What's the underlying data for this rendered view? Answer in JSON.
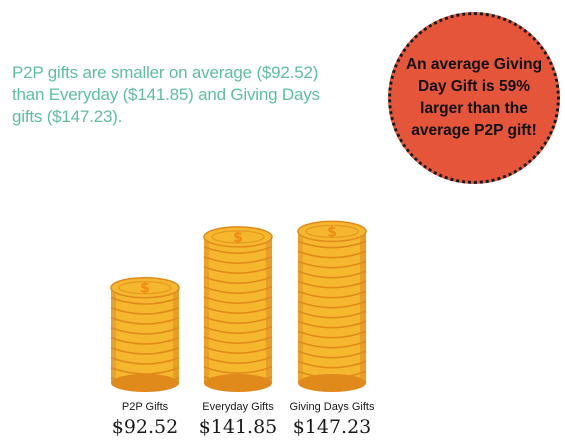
{
  "intro_text": "P2P gifts are smaller on average ($92.52) than Everyday ($141.85) and Giving Days gifts ($147.23).",
  "callout_text": "An average Giving Day Gift is 59% larger than the average P2P gift!",
  "colors": {
    "intro_text": "#5dbfa0",
    "callout_fill": "#e5553a",
    "coin_face": "#f5b72e",
    "coin_edge": "#e08a1c",
    "coin_symbol": "#f08a14"
  },
  "chart_data": {
    "type": "bar",
    "style": "coin stacks",
    "categories": [
      "P2P Gifts",
      "Everyday Gifts",
      "Giving Days Gifts"
    ],
    "values": [
      92.52,
      141.85,
      147.23
    ],
    "value_labels": [
      "$92.52",
      "$141.85",
      "$147.23"
    ],
    "icon": "dollar-coin-icon"
  }
}
